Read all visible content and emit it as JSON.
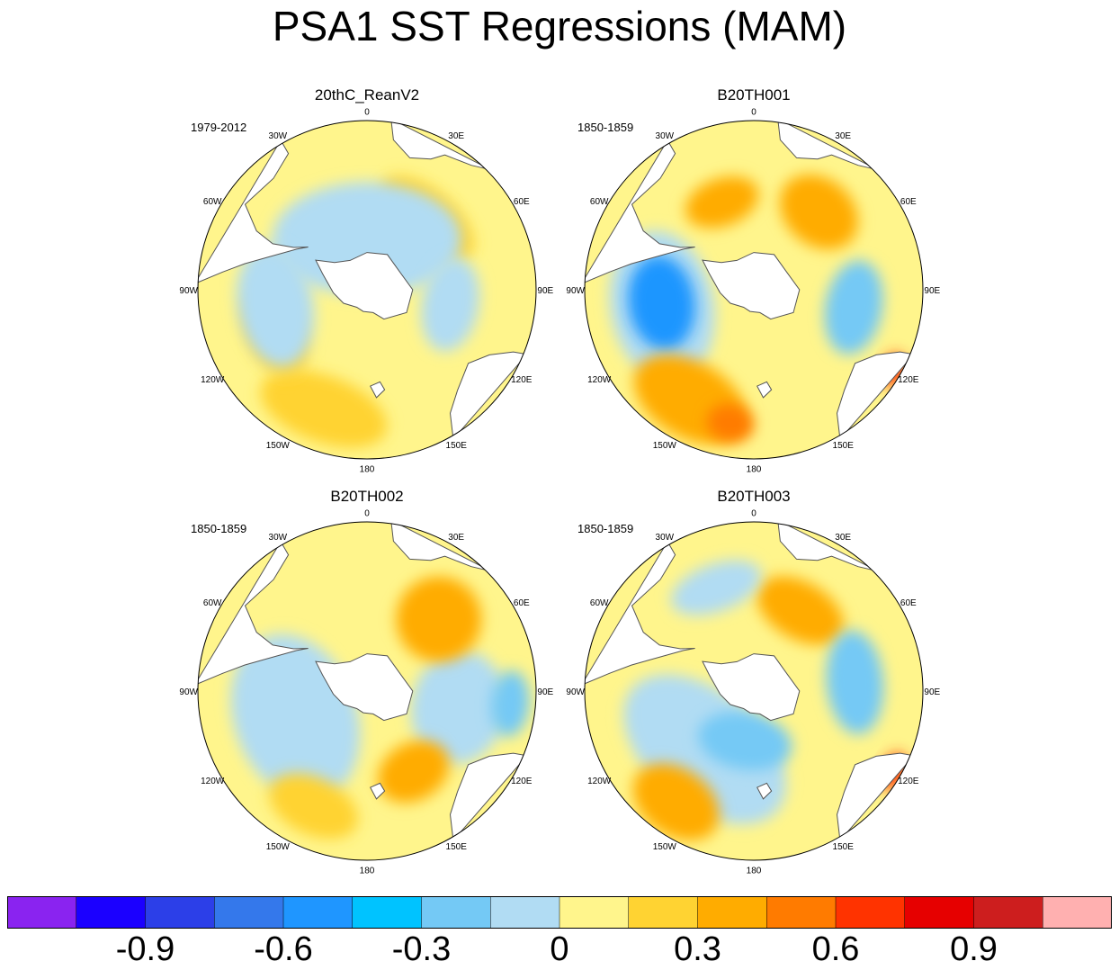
{
  "title": "PSA1 SST Regressions (MAM)",
  "colors": {
    "water_default": "#fff58c",
    "land": "#ffffff",
    "coast": "#555555"
  },
  "panels": [
    {
      "title": "20thC_ReanV2",
      "period": "1979-2012",
      "lon_labels": [
        "0",
        "30E",
        "60E",
        "90E",
        "120E",
        "150E",
        "180",
        "150W",
        "120W",
        "90W",
        "60W",
        "30W"
      ],
      "anomalies": [
        {
          "level": 0.15,
          "lon": 40,
          "r": 0.55,
          "sx": 1.2,
          "sy": 0.6
        },
        {
          "level": 0.15,
          "lon": 200,
          "r": 0.75,
          "sx": 1.4,
          "sy": 0.7
        },
        {
          "level": 0.15,
          "lon": 245,
          "r": 0.6,
          "sx": 1.0,
          "sy": 0.6
        },
        {
          "level": -0.05,
          "lon": 0,
          "r": 0.3,
          "sx": 2.0,
          "sy": 1.2
        },
        {
          "level": -0.05,
          "lon": 260,
          "r": 0.55,
          "sx": 1.3,
          "sy": 0.8
        },
        {
          "level": -0.05,
          "lon": 100,
          "r": 0.5,
          "sx": 1.0,
          "sy": 0.6
        }
      ]
    },
    {
      "title": "B20TH001",
      "period": "1850-1859",
      "lon_labels": [
        "0",
        "30E",
        "60E",
        "90E",
        "120E",
        "150E",
        "180",
        "150W",
        "120W",
        "90W",
        "60W",
        "30W"
      ],
      "anomalies": [
        {
          "level": -0.05,
          "lon": 260,
          "r": 0.55,
          "sx": 1.6,
          "sy": 1.1
        },
        {
          "level": -0.5,
          "lon": 262,
          "r": 0.55,
          "sx": 1.0,
          "sy": 0.7
        },
        {
          "level": 0.3,
          "lon": 210,
          "r": 0.75,
          "sx": 1.3,
          "sy": 0.8
        },
        {
          "level": 0.5,
          "lon": 190,
          "r": 0.8,
          "sx": 0.5,
          "sy": 0.4
        },
        {
          "level": -0.3,
          "lon": 100,
          "r": 0.6,
          "sx": 1.0,
          "sy": 0.6
        },
        {
          "level": 0.3,
          "lon": 40,
          "r": 0.6,
          "sx": 0.9,
          "sy": 0.7
        },
        {
          "level": 0.3,
          "lon": 340,
          "r": 0.55,
          "sx": 0.8,
          "sy": 0.5
        },
        {
          "level": 0.6,
          "lon": 120,
          "r": 0.95,
          "sx": 0.35,
          "sy": 0.25
        }
      ]
    },
    {
      "title": "B20TH002",
      "period": "1850-1859",
      "lon_labels": [
        "0",
        "30E",
        "60E",
        "90E",
        "120E",
        "150E",
        "180",
        "150W",
        "120W",
        "90W",
        "60W",
        "30W"
      ],
      "anomalies": [
        {
          "level": -0.05,
          "lon": 250,
          "r": 0.45,
          "sx": 1.8,
          "sy": 1.3
        },
        {
          "level": -0.05,
          "lon": 100,
          "r": 0.55,
          "sx": 1.2,
          "sy": 1.0
        },
        {
          "level": 0.3,
          "lon": 45,
          "r": 0.6,
          "sx": 0.9,
          "sy": 0.9
        },
        {
          "level": 0.4,
          "lon": 150,
          "r": 0.55,
          "sx": 0.8,
          "sy": 0.6
        },
        {
          "level": -0.3,
          "lon": 95,
          "r": 0.85,
          "sx": 0.7,
          "sy": 0.4
        },
        {
          "level": 0.15,
          "lon": 205,
          "r": 0.75,
          "sx": 1.0,
          "sy": 0.6
        }
      ]
    },
    {
      "title": "B20TH003",
      "period": "1850-1859",
      "lon_labels": [
        "0",
        "30E",
        "60E",
        "90E",
        "120E",
        "150E",
        "180",
        "150W",
        "120W",
        "90W",
        "60W",
        "30W"
      ],
      "anomalies": [
        {
          "level": -0.05,
          "lon": 220,
          "r": 0.45,
          "sx": 2.0,
          "sy": 1.2
        },
        {
          "level": -0.3,
          "lon": 190,
          "r": 0.3,
          "sx": 1.0,
          "sy": 0.6
        },
        {
          "level": 0.3,
          "lon": 215,
          "r": 0.8,
          "sx": 1.0,
          "sy": 0.7
        },
        {
          "level": 0.3,
          "lon": 30,
          "r": 0.55,
          "sx": 1.0,
          "sy": 0.6
        },
        {
          "level": -0.3,
          "lon": 85,
          "r": 0.6,
          "sx": 1.1,
          "sy": 0.6
        },
        {
          "level": -0.05,
          "lon": 340,
          "r": 0.65,
          "sx": 1.0,
          "sy": 0.5
        },
        {
          "level": 0.6,
          "lon": 120,
          "r": 0.95,
          "sx": 0.4,
          "sy": 0.25
        }
      ]
    }
  ],
  "colorbar": {
    "colors": [
      "#8a23f0",
      "#1b00ff",
      "#2c3fe8",
      "#3478eb",
      "#1f96ff",
      "#00c3ff",
      "#74c9f5",
      "#b1dcf3",
      "#fff58c",
      "#ffd332",
      "#ffac00",
      "#ff7b00",
      "#ff3300",
      "#e60000",
      "#cd1e1e",
      "#ffb0b0"
    ],
    "labels": [
      "-0.9",
      "-0.6",
      "-0.3",
      "0",
      "0.3",
      "0.6",
      "0.9"
    ],
    "label_values": [
      -0.9,
      -0.6,
      -0.3,
      0,
      0.3,
      0.6,
      0.9
    ],
    "min": -1.2,
    "max": 1.2
  },
  "chart_data": [
    {
      "type": "heatmap",
      "title": "20thC_ReanV2",
      "period": "1979-2012",
      "projection": "south-polar-stereographic",
      "variable": "SST regression on PSA1",
      "season": "MAM"
    },
    {
      "type": "heatmap",
      "title": "B20TH001",
      "period": "1850-1859",
      "projection": "south-polar-stereographic",
      "variable": "SST regression on PSA1",
      "season": "MAM"
    },
    {
      "type": "heatmap",
      "title": "B20TH002",
      "period": "1850-1859",
      "projection": "south-polar-stereographic",
      "variable": "SST regression on PSA1",
      "season": "MAM"
    },
    {
      "type": "heatmap",
      "title": "B20TH003",
      "period": "1850-1859",
      "projection": "south-polar-stereographic",
      "variable": "SST regression on PSA1",
      "season": "MAM"
    }
  ]
}
